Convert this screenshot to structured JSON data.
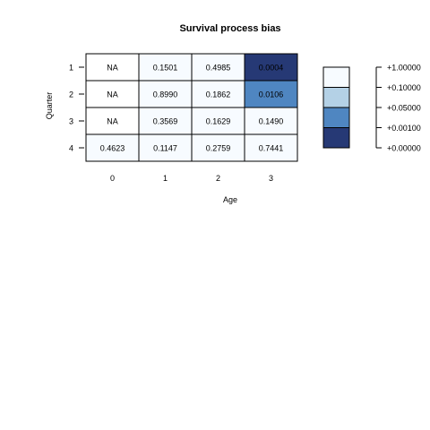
{
  "chart_data": {
    "type": "heatmap",
    "title": "Survival process bias",
    "xlabel": "Age",
    "ylabel": "Quarter",
    "x_categories": [
      "0",
      "1",
      "2",
      "3"
    ],
    "y_categories": [
      "1",
      "2",
      "3",
      "4"
    ],
    "cells": [
      [
        "NA",
        "0.1501",
        "0.4985",
        "0.0004"
      ],
      [
        "NA",
        "0.8990",
        "0.1862",
        "0.0106"
      ],
      [
        "NA",
        "0.3569",
        "0.1629",
        "0.1490"
      ],
      [
        "0.4623",
        "0.1147",
        "0.2759",
        "0.7441"
      ]
    ],
    "legend": {
      "labels": [
        "+1.00000",
        "+0.10000",
        "+0.05000",
        "+0.00100",
        "+0.00000"
      ],
      "breaks": [
        1,
        0.1,
        0.05,
        0.001,
        0
      ],
      "colors": [
        "#f7fbff",
        "#b4d1e6",
        "#4f86c1",
        "#263975"
      ],
      "placement": "right"
    },
    "na_color": "#ffffff",
    "grid": false
  }
}
